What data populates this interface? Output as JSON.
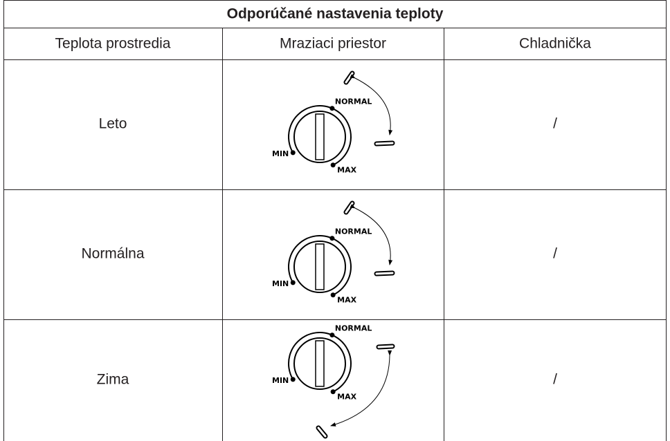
{
  "table": {
    "title": "Odporúčané nastavenia teploty",
    "headers": [
      "Teplota prostredia",
      "Mraziaci priestor",
      "Chladnička"
    ],
    "rows": [
      {
        "ambient": "Leto",
        "freezer": {
          "min": "MIN",
          "normal": "NORMAL",
          "max": "MAX"
        },
        "fridge": "/"
      },
      {
        "ambient": "Normálna",
        "freezer": {
          "min": "MIN",
          "normal": "NORMAL",
          "max": "MAX"
        },
        "fridge": "/"
      },
      {
        "ambient": "Zima",
        "freezer": {
          "min": "MIN",
          "normal": "NORMAL",
          "max": "MAX"
        },
        "fridge": "/"
      }
    ]
  }
}
